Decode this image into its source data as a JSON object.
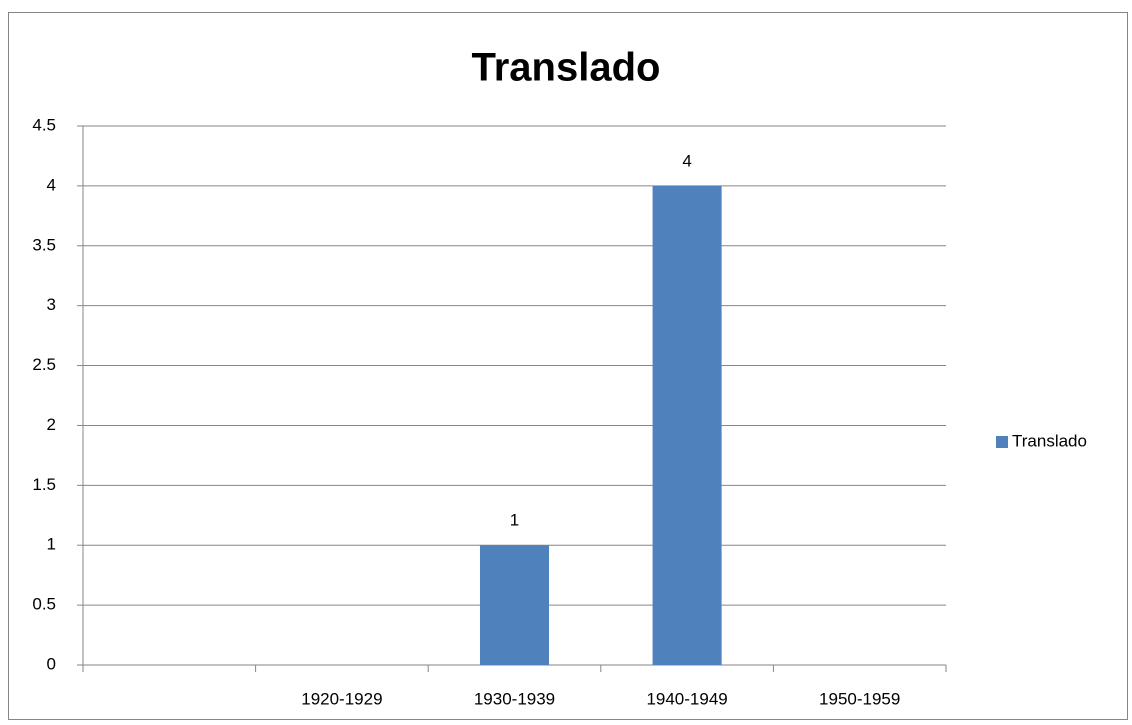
{
  "chart_data": {
    "type": "bar",
    "title": "Translado",
    "categories": [
      null,
      "1920-1929",
      "1930-1939",
      "1940-1949",
      "1950-1959"
    ],
    "series": [
      {
        "name": "Translado",
        "color": "#4f81bd",
        "values": [
          null,
          null,
          1,
          4,
          null
        ]
      }
    ],
    "ylim": [
      0,
      4.5
    ],
    "yticks": [
      0,
      0.5,
      1,
      1.5,
      2,
      2.5,
      3,
      3.5,
      4,
      4.5
    ],
    "grid": true,
    "data_labels": true,
    "legend": "right"
  }
}
